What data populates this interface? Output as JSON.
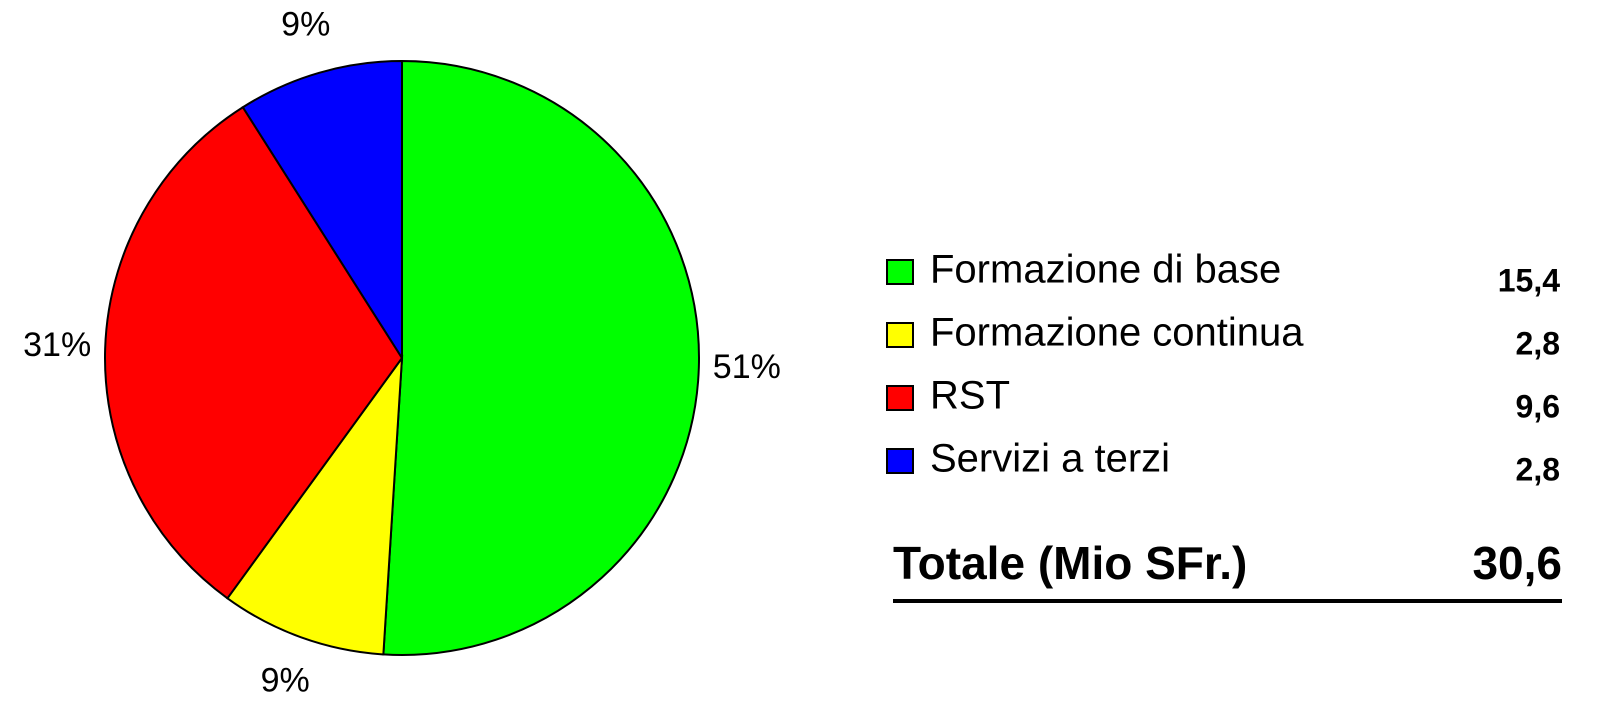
{
  "chart_data": {
    "type": "pie",
    "categories": [
      "Formazione di base",
      "Formazione continua",
      "RST",
      "Servizi a terzi"
    ],
    "values": [
      51,
      9,
      31,
      9
    ],
    "value_labels": [
      "51%",
      "9%",
      "31%",
      "9%"
    ],
    "colors": [
      "#00ff00",
      "#ffff00",
      "#ff0000",
      "#0000ff"
    ],
    "amounts": [
      15.4,
      2.8,
      9.6,
      2.8
    ],
    "amount_labels": [
      "15,4",
      "2,8",
      "9,6",
      "2,8"
    ],
    "total_label": "Totale (Mio SFr.)",
    "total": 30.6,
    "total_value_label": "30,6"
  }
}
